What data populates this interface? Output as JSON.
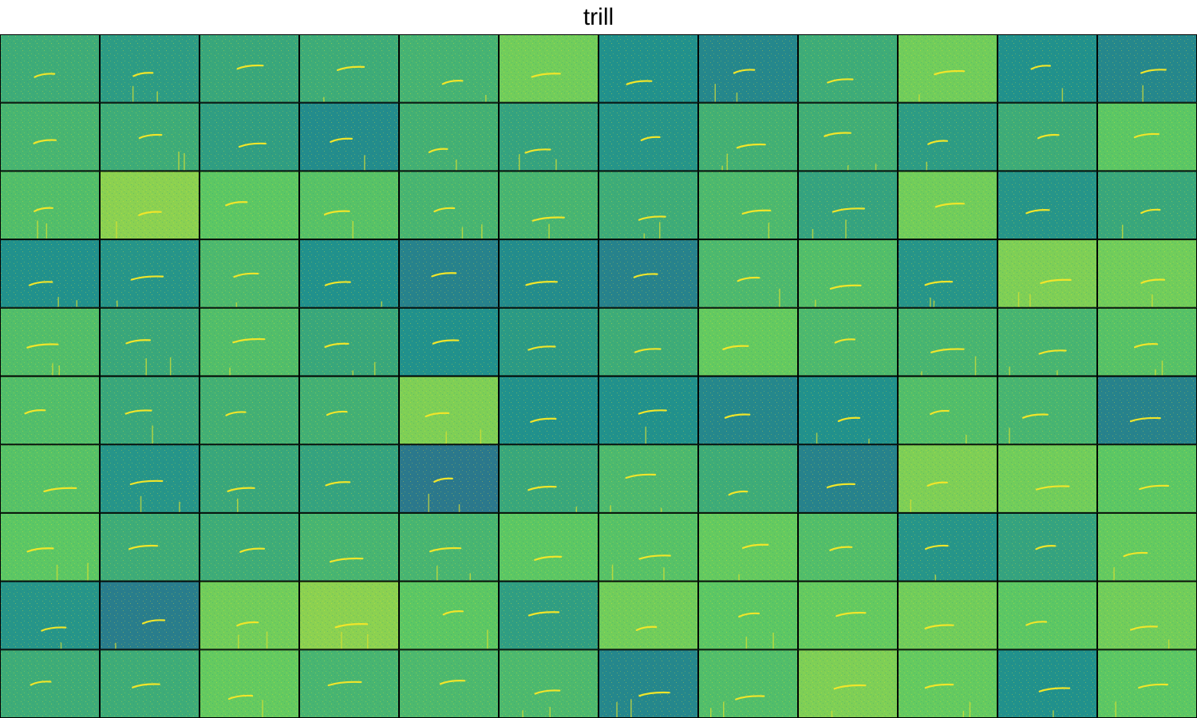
{
  "chart_data": {
    "type": "heatmap",
    "title": "trill",
    "layout": "grid",
    "rows": 10,
    "cols": 12,
    "colormap": "viridis",
    "colormap_stops": [
      "#440154",
      "#3b528b",
      "#21918c",
      "#5ec962",
      "#fde725"
    ],
    "axes_visible": false,
    "grid_line_color": "#000000",
    "background_levels": [
      [
        0.62,
        0.55,
        0.6,
        0.62,
        0.65,
        0.78,
        0.5,
        0.46,
        0.62,
        0.78,
        0.5,
        0.46
      ],
      [
        0.66,
        0.62,
        0.56,
        0.48,
        0.64,
        0.58,
        0.52,
        0.64,
        0.63,
        0.55,
        0.62,
        0.74
      ],
      [
        0.7,
        0.82,
        0.74,
        0.72,
        0.66,
        0.66,
        0.62,
        0.68,
        0.58,
        0.78,
        0.52,
        0.6
      ],
      [
        0.5,
        0.52,
        0.68,
        0.5,
        0.44,
        0.48,
        0.44,
        0.68,
        0.7,
        0.52,
        0.8,
        0.78
      ],
      [
        0.7,
        0.6,
        0.7,
        0.6,
        0.5,
        0.54,
        0.62,
        0.76,
        0.68,
        0.66,
        0.66,
        0.72
      ],
      [
        0.7,
        0.6,
        0.64,
        0.64,
        0.8,
        0.5,
        0.5,
        0.46,
        0.5,
        0.7,
        0.66,
        0.44
      ],
      [
        0.72,
        0.52,
        0.6,
        0.58,
        0.4,
        0.6,
        0.68,
        0.62,
        0.44,
        0.8,
        0.78,
        0.74
      ],
      [
        0.74,
        0.62,
        0.62,
        0.66,
        0.66,
        0.74,
        0.72,
        0.76,
        0.7,
        0.52,
        0.58,
        0.76
      ],
      [
        0.52,
        0.42,
        0.78,
        0.82,
        0.74,
        0.56,
        0.78,
        0.74,
        0.76,
        0.78,
        0.74,
        0.78
      ],
      [
        0.62,
        0.62,
        0.76,
        0.66,
        0.68,
        0.68,
        0.46,
        0.7,
        0.8,
        0.76,
        0.5,
        0.74
      ]
    ]
  }
}
